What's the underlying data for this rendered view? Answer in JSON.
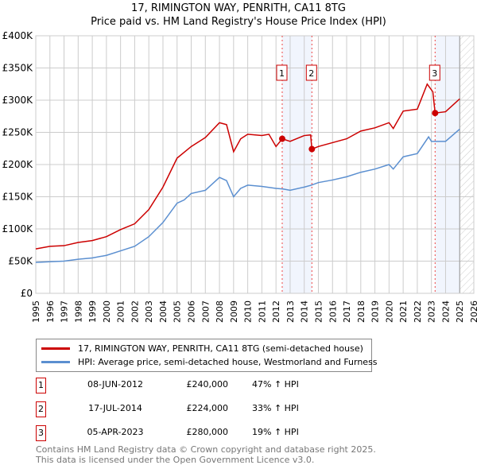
{
  "chart_data": {
    "type": "line",
    "title": "17, RIMINGTON WAY, PENRITH, CA11 8TG",
    "subtitle": "Price paid vs. HM Land Registry's House Price Index (HPI)",
    "xlim": [
      1995,
      2026
    ],
    "ylim": [
      0,
      400000
    ],
    "x_ticks": [
      "1995",
      "1996",
      "1997",
      "1998",
      "1999",
      "2000",
      "2001",
      "2002",
      "2003",
      "2004",
      "2005",
      "2006",
      "2007",
      "2008",
      "2009",
      "2010",
      "2011",
      "2012",
      "2013",
      "2014",
      "2015",
      "2016",
      "2017",
      "2018",
      "2019",
      "2020",
      "2021",
      "2022",
      "2023",
      "2024",
      "2025",
      "2026"
    ],
    "y_ticks": [
      {
        "v": 0,
        "label": "£0"
      },
      {
        "v": 50000,
        "label": "£50K"
      },
      {
        "v": 100000,
        "label": "£100K"
      },
      {
        "v": 150000,
        "label": "£150K"
      },
      {
        "v": 200000,
        "label": "£200K"
      },
      {
        "v": 250000,
        "label": "£250K"
      },
      {
        "v": 300000,
        "label": "£300K"
      },
      {
        "v": 350000,
        "label": "£350K"
      },
      {
        "v": 400000,
        "label": "£400K"
      }
    ],
    "grid": true,
    "data_end": 2025.0,
    "series": [
      {
        "name": "17, RIMINGTON WAY, PENRITH, CA11 8TG (semi-detached house)",
        "color": "#cc0000",
        "x": [
          1995,
          1996,
          1997,
          1998,
          1999,
          2000,
          2001,
          2002,
          2003,
          2004,
          2005,
          2006,
          2007,
          2008,
          2008.5,
          2009,
          2009.5,
          2010,
          2011,
          2011.5,
          2012,
          2012.44,
          2013,
          2014,
          2014.45,
          2014.54,
          2015,
          2016,
          2017,
          2018,
          2019,
          2020,
          2020.3,
          2021,
          2022,
          2022.7,
          2023.1,
          2023.26,
          2024,
          2025
        ],
        "y": [
          69000,
          73000,
          74000,
          79000,
          82000,
          88000,
          99000,
          108000,
          130000,
          165000,
          210000,
          228000,
          242000,
          265000,
          262000,
          220000,
          240000,
          247000,
          245000,
          247000,
          228000,
          240000,
          236000,
          245000,
          246000,
          224000,
          228000,
          234000,
          240000,
          252000,
          257000,
          265000,
          256000,
          283000,
          286000,
          325000,
          313000,
          280000,
          282000,
          302000
        ]
      },
      {
        "name": "HPI: Average price, semi-detached house, Westmorland and Furness",
        "color": "#5b8fd0",
        "x": [
          1995,
          1996,
          1997,
          1998,
          1999,
          2000,
          2001,
          2002,
          2003,
          2004,
          2005,
          2005.5,
          2006,
          2007,
          2007.5,
          2008,
          2008.5,
          2009,
          2009.5,
          2010,
          2011,
          2012,
          2012.5,
          2013,
          2014,
          2014.5,
          2015,
          2016,
          2017,
          2018,
          2019,
          2020,
          2020.3,
          2021,
          2022,
          2022.8,
          2023,
          2024,
          2025
        ],
        "y": [
          48000,
          49000,
          50000,
          53000,
          55000,
          59000,
          66000,
          73000,
          88000,
          110000,
          140000,
          145000,
          155000,
          160000,
          170000,
          180000,
          175000,
          150000,
          163000,
          168000,
          166000,
          163000,
          162000,
          160000,
          165000,
          168000,
          172000,
          176000,
          181000,
          188000,
          193000,
          200000,
          193000,
          212000,
          217000,
          243000,
          236000,
          236000,
          255000
        ]
      }
    ],
    "sales": [
      {
        "num": "1",
        "x": 2012.44,
        "date": "08-JUN-2012",
        "price": "£240,000",
        "price_value": 240000,
        "hpi": "47% ↑ HPI"
      },
      {
        "num": "2",
        "x": 2014.54,
        "date": "17-JUL-2014",
        "price": "£224,000",
        "price_value": 224000,
        "hpi": "33% ↑ HPI"
      },
      {
        "num": "3",
        "x": 2023.26,
        "date": "05-APR-2023",
        "price": "£280,000",
        "price_value": 280000,
        "hpi": "19% ↑ HPI"
      }
    ]
  },
  "footer": {
    "line1": "Contains HM Land Registry data © Crown copyright and database right 2025.",
    "line2": "This data is licensed under the Open Government Licence v3.0."
  }
}
